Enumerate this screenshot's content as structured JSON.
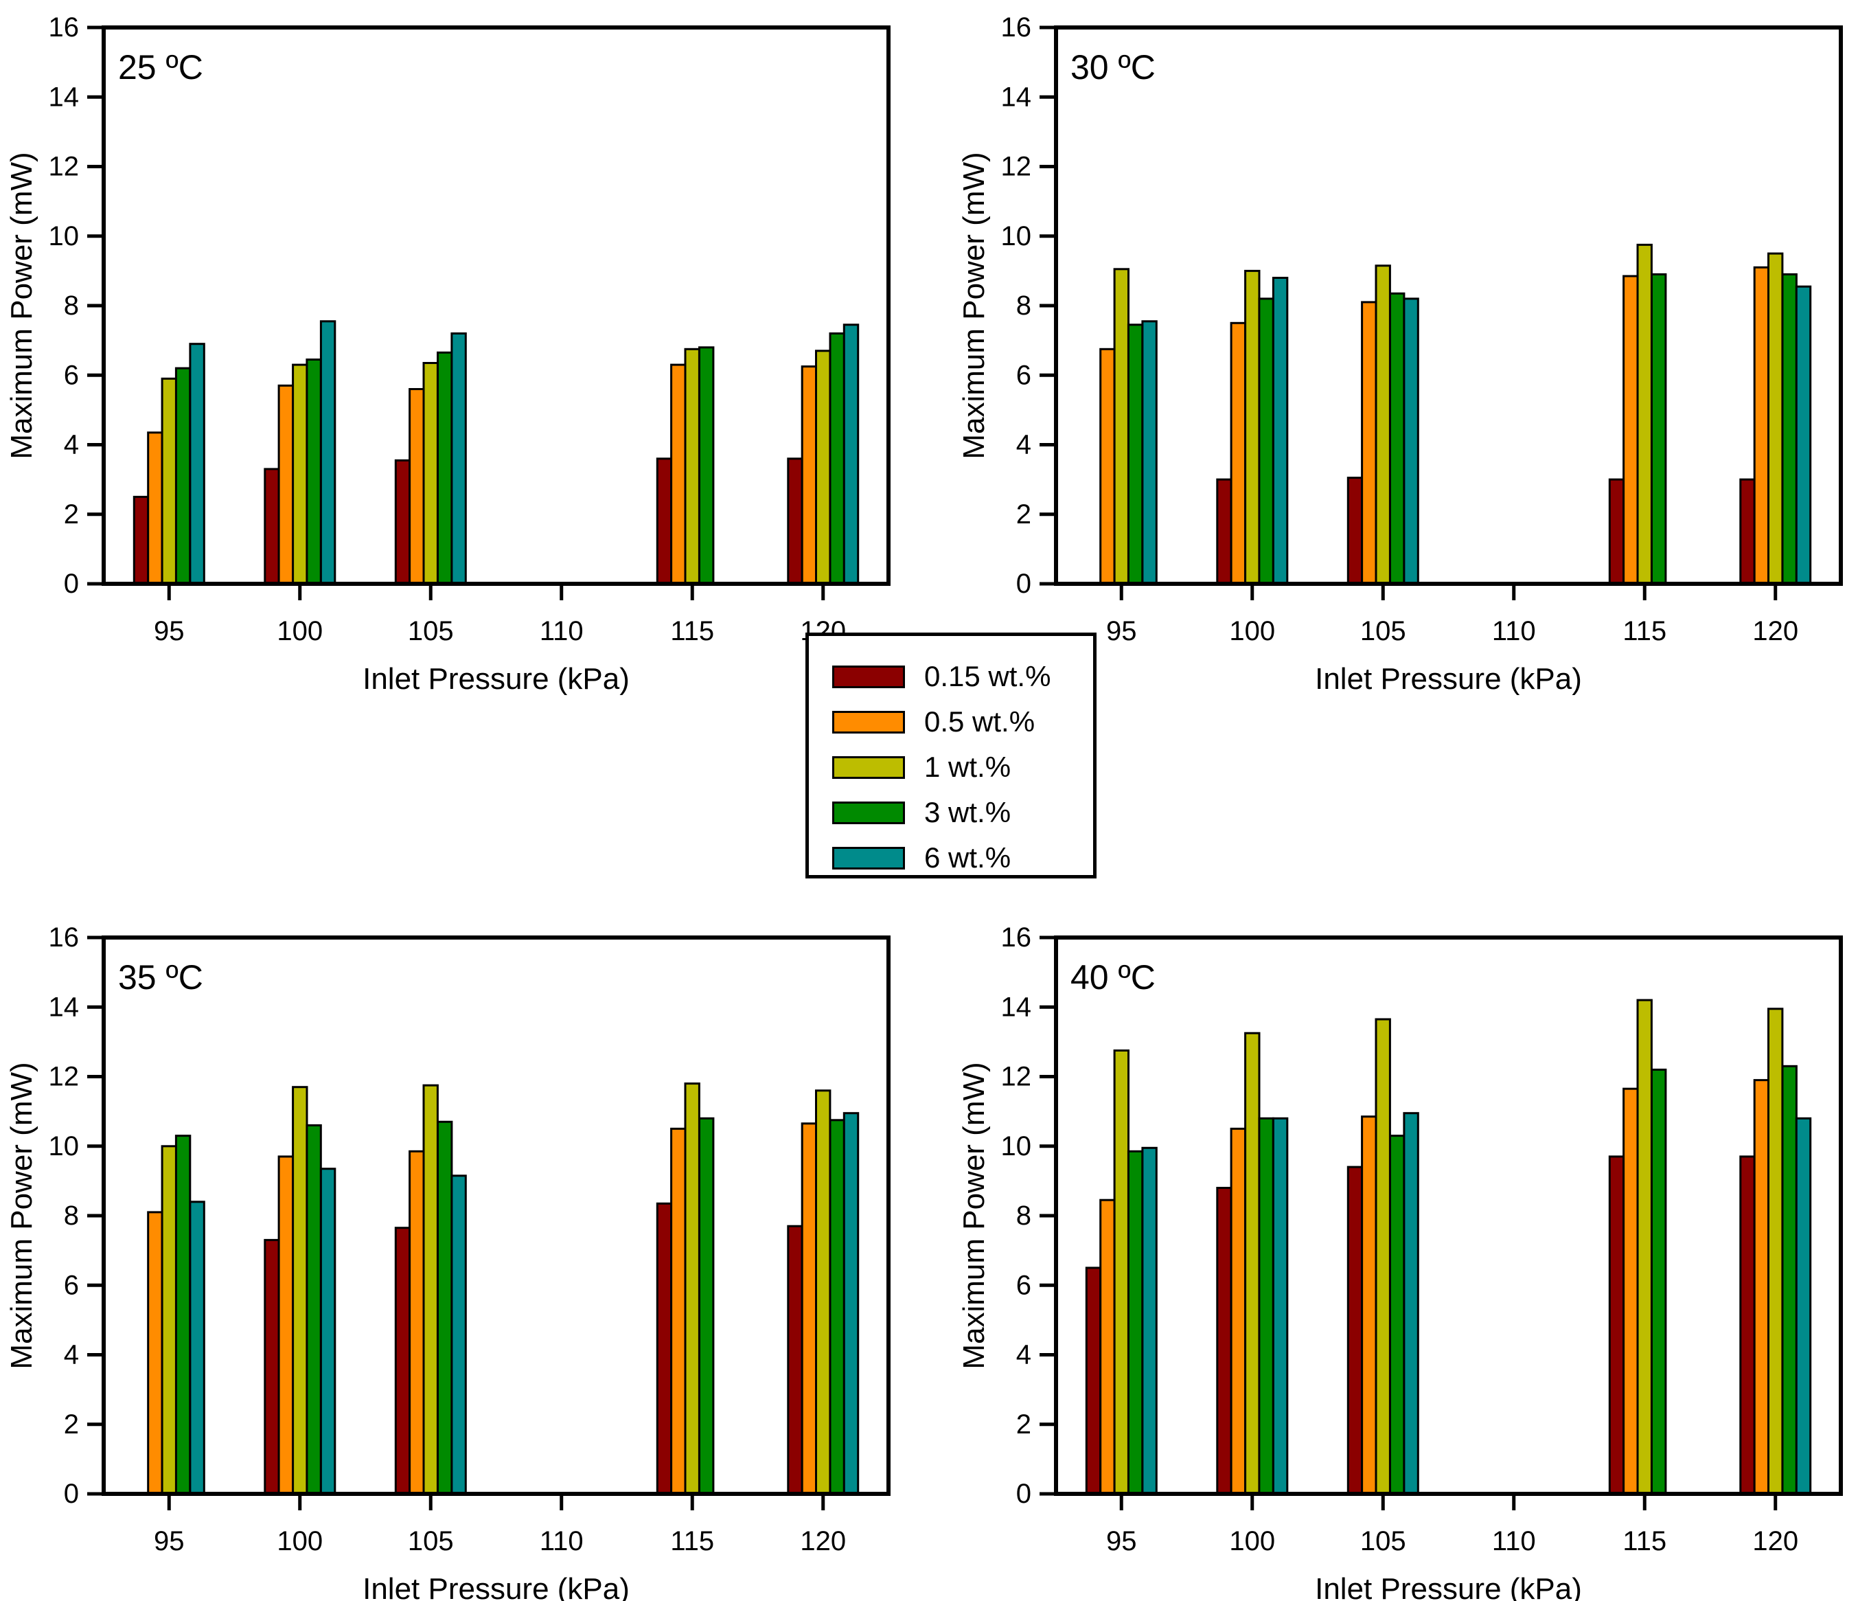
{
  "figure": {
    "background": "#ffffff",
    "panel_titles": [
      "25 ºC",
      "30 ºC",
      "35 ºC",
      "40 ºC"
    ]
  },
  "legend": {
    "items": [
      {
        "label": "0.15 wt.%",
        "color": "#8B0000"
      },
      {
        "label": "0.5 wt.%",
        "color": "#FF8C00"
      },
      {
        "label": "1 wt.%",
        "color": "#BDBD00"
      },
      {
        "label": "3 wt.%",
        "color": "#008A00"
      },
      {
        "label": "6 wt.%",
        "color": "#008B8B"
      }
    ]
  },
  "chart_data": [
    {
      "type": "bar",
      "title": "25 ºC",
      "xlabel": "Inlet Pressure (kPa)",
      "ylabel": "Maximum Power (mW)",
      "categories": [
        95,
        100,
        105,
        110,
        115,
        120
      ],
      "xlim": [
        92.5,
        122.5
      ],
      "ylim": [
        0,
        16
      ],
      "yticks": [
        0,
        2,
        4,
        6,
        8,
        10,
        12,
        14,
        16
      ],
      "grid": false,
      "legend_position": "shared-center",
      "series": [
        {
          "name": "0.15 wt.%",
          "color": "#8B0000",
          "values": [
            2.5,
            3.3,
            3.55,
            null,
            3.6,
            3.6
          ]
        },
        {
          "name": "0.5 wt.%",
          "color": "#FF8C00",
          "values": [
            4.35,
            5.7,
            5.6,
            null,
            6.3,
            6.25
          ]
        },
        {
          "name": "1 wt.%",
          "color": "#BDBD00",
          "values": [
            5.9,
            6.3,
            6.35,
            null,
            6.75,
            6.7
          ]
        },
        {
          "name": "3 wt.%",
          "color": "#008A00",
          "values": [
            6.2,
            6.45,
            6.65,
            null,
            6.8,
            7.2
          ]
        },
        {
          "name": "6 wt.%",
          "color": "#008B8B",
          "values": [
            6.9,
            7.55,
            7.2,
            null,
            null,
            7.45
          ]
        }
      ]
    },
    {
      "type": "bar",
      "title": "30 ºC",
      "xlabel": "Inlet Pressure (kPa)",
      "ylabel": "Maximum Power (mW)",
      "categories": [
        95,
        100,
        105,
        110,
        115,
        120
      ],
      "xlim": [
        92.5,
        122.5
      ],
      "ylim": [
        0,
        16
      ],
      "yticks": [
        0,
        2,
        4,
        6,
        8,
        10,
        12,
        14,
        16
      ],
      "grid": false,
      "legend_position": "shared-center",
      "series": [
        {
          "name": "0.15 wt.%",
          "color": "#8B0000",
          "values": [
            null,
            3.0,
            3.05,
            null,
            3.0,
            3.0
          ]
        },
        {
          "name": "0.5 wt.%",
          "color": "#FF8C00",
          "values": [
            6.75,
            7.5,
            8.1,
            null,
            8.85,
            9.1
          ]
        },
        {
          "name": "1 wt.%",
          "color": "#BDBD00",
          "values": [
            9.05,
            9.0,
            9.15,
            null,
            9.75,
            9.5
          ]
        },
        {
          "name": "3 wt.%",
          "color": "#008A00",
          "values": [
            7.45,
            8.2,
            8.35,
            null,
            8.9,
            8.9
          ]
        },
        {
          "name": "6 wt.%",
          "color": "#008B8B",
          "values": [
            7.55,
            8.8,
            8.2,
            null,
            null,
            8.55
          ]
        }
      ]
    },
    {
      "type": "bar",
      "title": "35 ºC",
      "xlabel": "Inlet Pressure (kPa)",
      "ylabel": "Maximum Power (mW)",
      "categories": [
        95,
        100,
        105,
        110,
        115,
        120
      ],
      "xlim": [
        92.5,
        122.5
      ],
      "ylim": [
        0,
        16
      ],
      "yticks": [
        0,
        2,
        4,
        6,
        8,
        10,
        12,
        14,
        16
      ],
      "grid": false,
      "legend_position": "shared-center",
      "series": [
        {
          "name": "0.15 wt.%",
          "color": "#8B0000",
          "values": [
            null,
            7.3,
            7.65,
            null,
            8.35,
            7.7
          ]
        },
        {
          "name": "0.5 wt.%",
          "color": "#FF8C00",
          "values": [
            8.1,
            9.7,
            9.85,
            null,
            10.5,
            10.65
          ]
        },
        {
          "name": "1 wt.%",
          "color": "#BDBD00",
          "values": [
            10.0,
            11.7,
            11.75,
            null,
            11.8,
            11.6
          ]
        },
        {
          "name": "3 wt.%",
          "color": "#008A00",
          "values": [
            10.3,
            10.6,
            10.7,
            null,
            10.8,
            10.75
          ]
        },
        {
          "name": "6 wt.%",
          "color": "#008B8B",
          "values": [
            8.4,
            9.35,
            9.15,
            null,
            null,
            10.95
          ]
        }
      ]
    },
    {
      "type": "bar",
      "title": "40 ºC",
      "xlabel": "Inlet Pressure (kPa)",
      "ylabel": "Maximum Power (mW)",
      "categories": [
        95,
        100,
        105,
        110,
        115,
        120
      ],
      "xlim": [
        92.5,
        122.5
      ],
      "ylim": [
        0,
        16
      ],
      "yticks": [
        0,
        2,
        4,
        6,
        8,
        10,
        12,
        14,
        16
      ],
      "grid": false,
      "legend_position": "shared-center",
      "series": [
        {
          "name": "0.15 wt.%",
          "color": "#8B0000",
          "values": [
            6.5,
            8.8,
            9.4,
            null,
            9.7,
            9.7
          ]
        },
        {
          "name": "0.5 wt.%",
          "color": "#FF8C00",
          "values": [
            8.45,
            10.5,
            10.85,
            null,
            11.65,
            11.9
          ]
        },
        {
          "name": "1 wt.%",
          "color": "#BDBD00",
          "values": [
            12.75,
            13.25,
            13.65,
            null,
            14.2,
            13.95
          ]
        },
        {
          "name": "3 wt.%",
          "color": "#008A00",
          "values": [
            9.85,
            10.8,
            10.3,
            null,
            12.2,
            12.3
          ]
        },
        {
          "name": "6 wt.%",
          "color": "#008B8B",
          "values": [
            9.95,
            10.8,
            10.95,
            null,
            null,
            10.8
          ]
        }
      ]
    }
  ]
}
